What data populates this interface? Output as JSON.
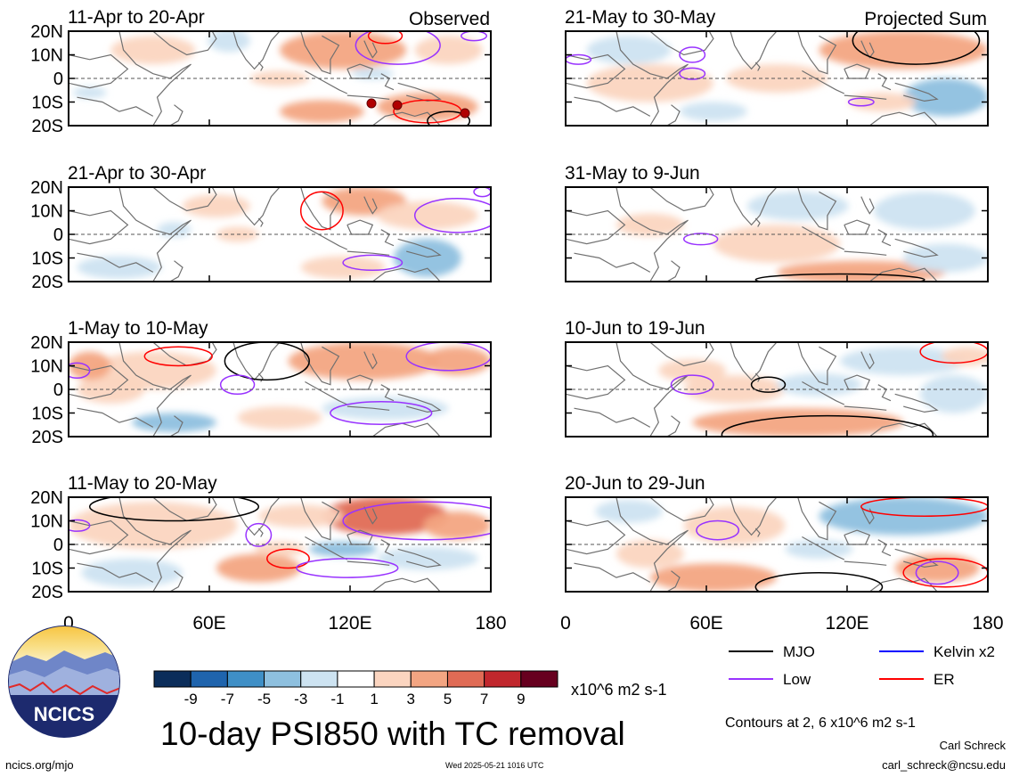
{
  "panels": [
    {
      "period": "11-Apr to 20-Apr",
      "tag": "Observed",
      "tag_index": 0
    },
    {
      "period": "21-Apr to 30-Apr",
      "tag": ""
    },
    {
      "period": "1-May to 10-May",
      "tag": ""
    },
    {
      "period": "11-May to 20-May",
      "tag": ""
    },
    {
      "period": "21-May to 30-May",
      "tag": "Projected Sum"
    },
    {
      "period": "31-May to 9-Jun",
      "tag": ""
    },
    {
      "period": "10-Jun to 19-Jun",
      "tag": ""
    },
    {
      "period": "20-Jun to 29-Jun",
      "tag": ""
    }
  ],
  "lat_labels": [
    "20N",
    "10N",
    "0",
    "10S",
    "20S"
  ],
  "lon_labels": [
    "0",
    "60E",
    "120E",
    "180"
  ],
  "colorbar": {
    "colors": [
      "#0b2d5a",
      "#1f64ad",
      "#3f8fc6",
      "#8ec0df",
      "#cde3f1",
      "#ffffff",
      "#fbd5c0",
      "#f3a582",
      "#e06b55",
      "#c1272d",
      "#67001f"
    ],
    "labels": [
      "-9",
      "-7",
      "-5",
      "-3",
      "-1",
      "1",
      "3",
      "5",
      "7",
      "9"
    ],
    "units": "x10^6 m2 s-1"
  },
  "legend": [
    {
      "label": "MJO",
      "color": "#000000"
    },
    {
      "label": "Kelvin x2",
      "color": "#0000ff"
    },
    {
      "label": "Low",
      "color": "#9933ff"
    },
    {
      "label": "ER",
      "color": "#ff0000"
    }
  ],
  "title": "10-day PSI850 with TC removal",
  "contour_note": "Contours at 2, 6 x10^6 m2 s-1",
  "logo_text": "NCICS",
  "author": "Carl Schreck",
  "email": "carl_schreck@ncsu.edu",
  "site": "ncics.org/mjo",
  "timestamp": "Wed 2025-05-21 1016 UTC"
}
